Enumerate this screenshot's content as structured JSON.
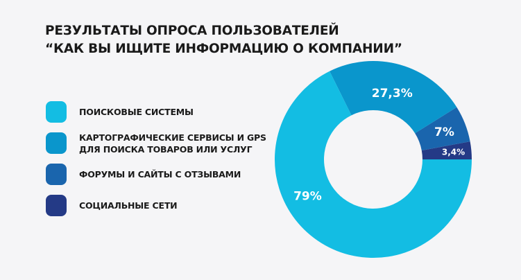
{
  "chart_data": {
    "type": "pie",
    "variant": "donut",
    "title_lines": [
      "РЕЗУЛЬТАТЫ ОПРОСА ПОЛЬЗОВАТЕЛЕЙ",
      "“КАК ВЫ ИЩИТЕ ИНФОРМАЦИЮ О КОМПАНИИ”"
    ],
    "legend_placement": "left",
    "slices": [
      {
        "name": "ПОИСКОВЫЕ СИСТЕМЫ",
        "value": 79,
        "label": "79%",
        "color": "#13bde3"
      },
      {
        "name": "КАРТОГРАФИЧЕСКИЕ СЕРВИСЫ И GPS\nДЛЯ ПОИСКА ТОВАРОВ ИЛИ УСЛУГ",
        "value": 27.3,
        "label": "27,3%",
        "color": "#0a96cc"
      },
      {
        "name": "ФОРУМЫ И САЙТЫ С ОТЗЫВАМИ",
        "value": 7,
        "label": "7%",
        "color": "#1a65ad"
      },
      {
        "name": "СОЦИАЛЬНЫЕ СЕТИ",
        "value": 3.4,
        "label": "3,4%",
        "color": "#243a86"
      }
    ]
  }
}
